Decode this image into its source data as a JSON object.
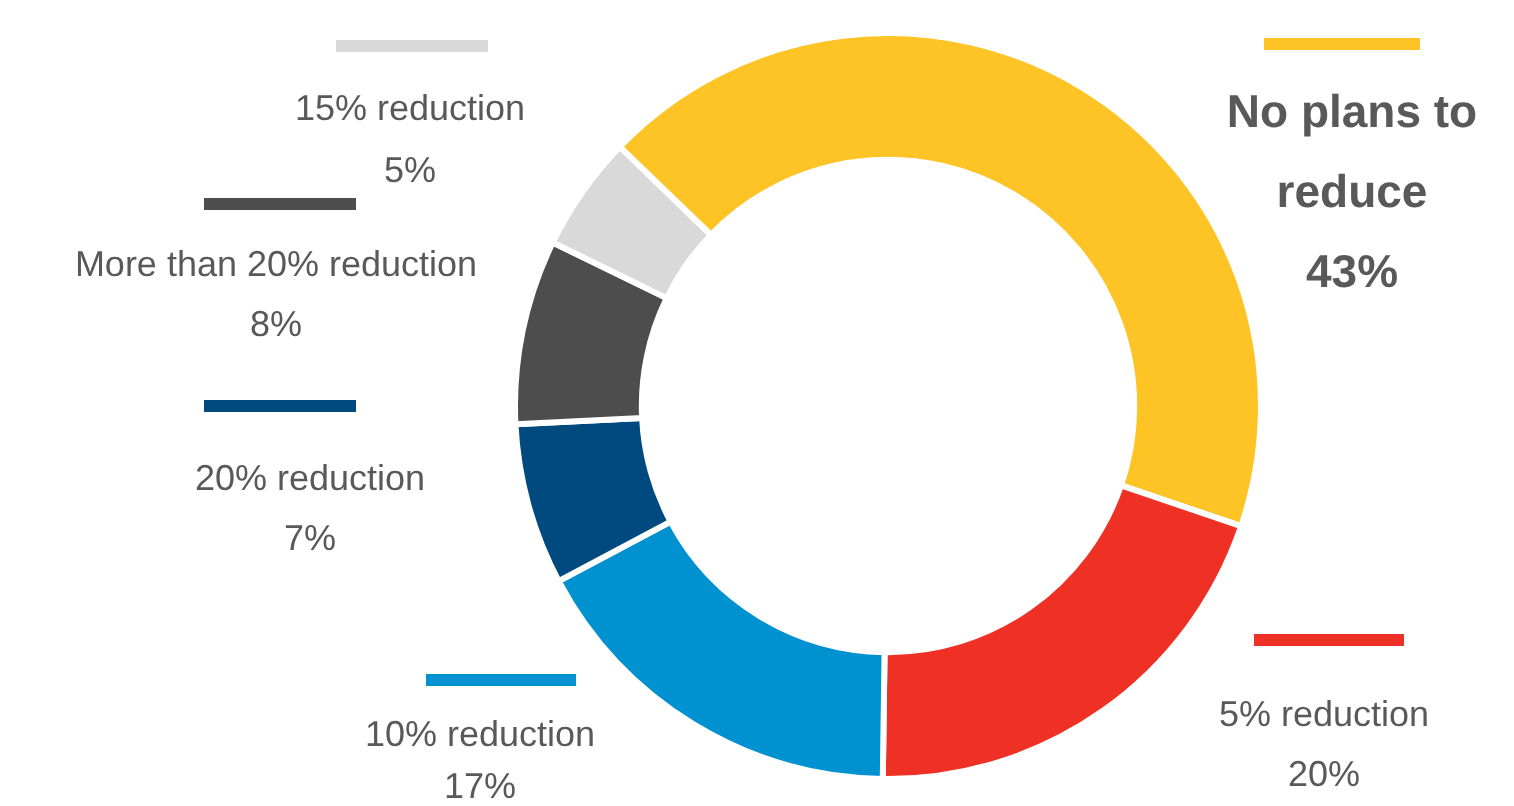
{
  "chart_data": {
    "type": "donut",
    "categories": [
      "No plans to reduce",
      "5% reduction",
      "10% reduction",
      "20% reduction",
      "More than 20% reduction",
      "15% reduction"
    ],
    "values": [
      43,
      20,
      17,
      7,
      8,
      5
    ],
    "value_labels": [
      "43%",
      "20%",
      "17%",
      "7%",
      "8%",
      "5%"
    ],
    "colors": [
      "#fec325",
      "#ee3124",
      "#0091d0",
      "#004a80",
      "#4d4d4d",
      "#d9d9d9"
    ],
    "legend": "top"
  }
}
